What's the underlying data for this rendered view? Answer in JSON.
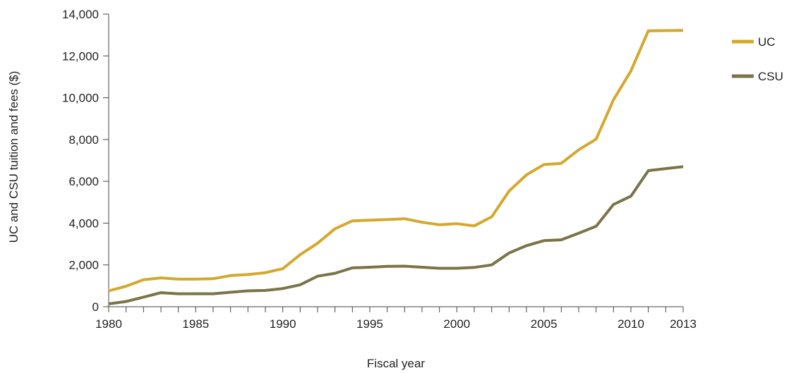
{
  "chart_data": {
    "type": "line",
    "title": "",
    "xlabel": "Fiscal year",
    "ylabel": "UC and CSU tuition and fees ($)",
    "xlim": [
      1980,
      2013
    ],
    "ylim": [
      0,
      14000
    ],
    "x_ticks": [
      "1980",
      "1985",
      "1990",
      "1995",
      "2000",
      "2005",
      "2010",
      "2013"
    ],
    "y_ticks": [
      "0",
      "2,000",
      "4,000",
      "6,000",
      "8,000",
      "10,000",
      "12,000",
      "14,000"
    ],
    "grid": false,
    "legend_position": "right",
    "x": [
      1980,
      1981,
      1982,
      1983,
      1984,
      1985,
      1986,
      1987,
      1988,
      1989,
      1990,
      1991,
      1992,
      1993,
      1994,
      1995,
      1996,
      1997,
      1998,
      1999,
      2000,
      2001,
      2002,
      2003,
      2004,
      2005,
      2006,
      2007,
      2008,
      2009,
      2010,
      2011,
      2012,
      2013
    ],
    "series": [
      {
        "name": "UC",
        "color": "#D4A82C",
        "values": [
          760,
          980,
          1290,
          1380,
          1320,
          1320,
          1340,
          1490,
          1540,
          1630,
          1820,
          2490,
          3040,
          3730,
          4110,
          4140,
          4170,
          4210,
          4040,
          3920,
          3970,
          3870,
          4300,
          5530,
          6310,
          6800,
          6860,
          7510,
          8020,
          9900,
          11280,
          13200,
          13210,
          13220
        ]
      },
      {
        "name": "CSU",
        "color": "#7A7448",
        "values": [
          140,
          250,
          460,
          670,
          620,
          620,
          620,
          690,
          760,
          780,
          870,
          1050,
          1460,
          1600,
          1860,
          1890,
          1930,
          1940,
          1890,
          1840,
          1840,
          1880,
          2000,
          2570,
          2920,
          3160,
          3200,
          3520,
          3850,
          4890,
          5290,
          6510,
          6610,
          6700
        ]
      }
    ]
  }
}
